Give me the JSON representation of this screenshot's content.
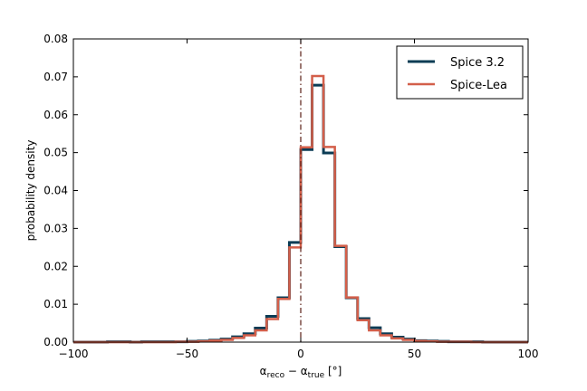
{
  "chart_data": {
    "type": "line",
    "xlabel": "α_reco − α_true [°]",
    "ylabel": "probability density",
    "xlim": [
      -100,
      100
    ],
    "ylim": [
      0,
      0.08
    ],
    "xticks": [
      -100,
      -50,
      0,
      50,
      100
    ],
    "xtick_labels": [
      "−100",
      "−50",
      "0",
      "50",
      "100"
    ],
    "yticks": [
      0.0,
      0.01,
      0.02,
      0.03,
      0.04,
      0.05,
      0.06,
      0.07,
      0.08
    ],
    "ytick_labels": [
      "0.00",
      "0.01",
      "0.02",
      "0.03",
      "0.04",
      "0.05",
      "0.06",
      "0.07",
      "0.08"
    ],
    "vline_x": 0,
    "legend_position": "top-right",
    "bin_edges": [
      -100,
      -95,
      -90,
      -85,
      -80,
      -75,
      -70,
      -65,
      -60,
      -55,
      -50,
      -45,
      -40,
      -35,
      -30,
      -25,
      -20,
      -15,
      -10,
      -5,
      0,
      5,
      10,
      15,
      20,
      25,
      30,
      35,
      40,
      45,
      50,
      55,
      60,
      65,
      70,
      75,
      80,
      85,
      90,
      95,
      100
    ],
    "series": [
      {
        "name": "Spice 3.2",
        "color": "#0b3c55",
        "values": [
          0.0,
          0.0,
          0.0,
          0.0001,
          0.0001,
          0.0,
          0.0001,
          0.0001,
          0.0001,
          0.0001,
          0.0002,
          0.0003,
          0.0005,
          0.0008,
          0.0014,
          0.0022,
          0.0037,
          0.0068,
          0.0117,
          0.0263,
          0.0508,
          0.0678,
          0.0499,
          0.0252,
          0.0117,
          0.0062,
          0.0038,
          0.0022,
          0.0013,
          0.0008,
          0.0004,
          0.0003,
          0.0002,
          0.0001,
          0.0001,
          0.0001,
          0.0,
          0.0,
          0.0,
          0.0
        ]
      },
      {
        "name": "Spice-Lea",
        "color": "#d35f4a",
        "values": [
          0.0,
          0.0,
          0.0,
          0.0,
          0.0,
          0.0,
          0.0,
          0.0,
          0.0,
          0.0001,
          0.0001,
          0.0002,
          0.0004,
          0.0006,
          0.0011,
          0.0018,
          0.0031,
          0.0061,
          0.0114,
          0.025,
          0.0514,
          0.0702,
          0.0515,
          0.0254,
          0.0118,
          0.0058,
          0.0031,
          0.0018,
          0.001,
          0.0006,
          0.0003,
          0.0002,
          0.0001,
          0.0001,
          0.0001,
          0.0,
          0.0,
          0.0,
          0.0,
          0.0
        ]
      }
    ]
  }
}
